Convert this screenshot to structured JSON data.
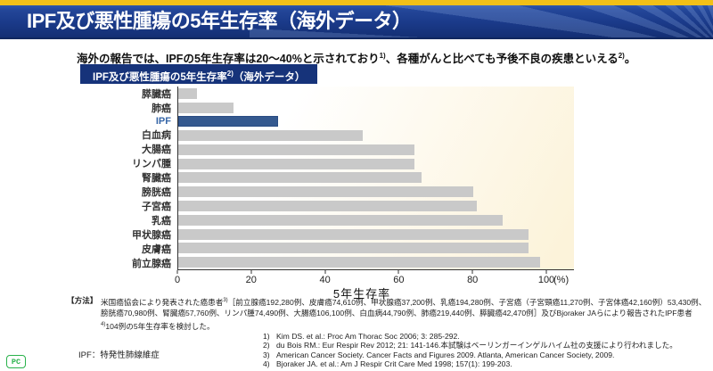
{
  "header": {
    "title": "IPF及び悪性腫瘍の5年生存率（海外データ）"
  },
  "intro_parts": [
    {
      "t": "海外の報告では、IPFの5年生存率は20～40%と示されており"
    },
    {
      "sup": "1)"
    },
    {
      "t": "、各種がんと比べても予後不良の疾患といえる"
    },
    {
      "sup": "2)"
    },
    {
      "t": "。"
    }
  ],
  "badge_parts": [
    {
      "t": "IPF及び悪性腫瘍の5年生存率"
    },
    {
      "sup": "2)"
    },
    {
      "t": "（海外データ）"
    }
  ],
  "chart_data": {
    "type": "bar",
    "orientation": "horizontal",
    "title": "IPF及び悪性腫瘍の5年生存率2)（海外データ）",
    "xlabel": "5年生存率",
    "x_unit": "(%)",
    "xlim": [
      0,
      100
    ],
    "x_ticks": [
      0,
      20,
      40,
      60,
      80,
      100
    ],
    "grid": false,
    "legend": "none",
    "categories": [
      "膵臓癌",
      "肺癌",
      "IPF",
      "白血病",
      "大腸癌",
      "リンパ腫",
      "腎臓癌",
      "膀胱癌",
      "子宮癌",
      "乳癌",
      "甲状腺癌",
      "皮膚癌",
      "前立腺癌"
    ],
    "values": [
      5,
      15,
      27,
      50,
      64,
      64,
      66,
      80,
      81,
      88,
      95,
      95,
      98
    ],
    "highlight_category": "IPF",
    "colors": {
      "bar": "#c9c9c9",
      "highlight_bar": "#35598f",
      "highlight_label": "#3767a8"
    }
  },
  "method": {
    "label": "【方法】",
    "parts": [
      {
        "t": "米国癌協会により発表された癌患者"
      },
      {
        "sup": "3)"
      },
      {
        "t": "［前立腺癌192,280例、皮膚癌74,610例、甲状腺癌37,200例、乳癌194,280例、子宮癌（子宮頸癌11,270例、子宮体癌42,160例）53,430例、膀胱癌70,980例、腎臓癌57,760例、リンパ腫74,490例、大腸癌106,100例、白血病44,790例、肺癌219,440例、膵臓癌42,470例］及びBjoraker JAらにより報告されたIPF患者"
      },
      {
        "sup": "4)"
      },
      {
        "t": "104例の5年生存率を検討した。"
      }
    ]
  },
  "references": [
    {
      "num": "1)",
      "text": "Kim DS. et al.: Proc Am Thorac Soc 2006; 3: 285-292."
    },
    {
      "num": "2)",
      "text": "du Bois RM.: Eur Respir Rev 2012; 21: 141-146.本試験はベーリンガーインゲルハイム社の支援により行われました。"
    },
    {
      "num": "3)",
      "text": "American Cancer Society. Cancer Facts and Figures 2009. Atlanta, American Cancer Society, 2009."
    },
    {
      "num": "4)",
      "text": "Bjoraker JA. et al.: Am J Respir Crit Care Med 1998; 157(1): 199-203."
    }
  ],
  "footnote": "IPF：特発性肺線維症",
  "logo_text": "PC"
}
